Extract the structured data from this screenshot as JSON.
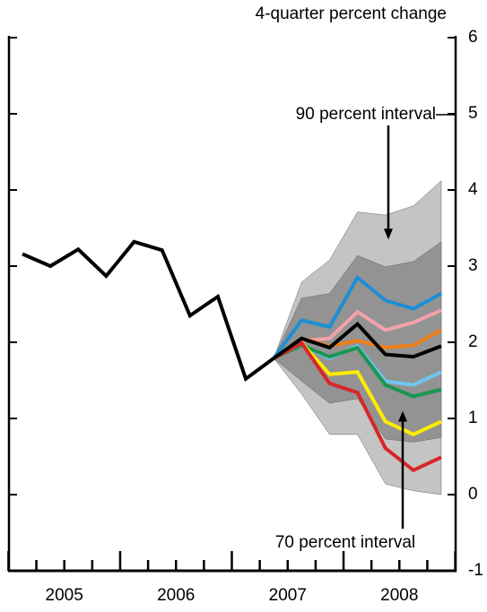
{
  "chart_data": {
    "type": "line",
    "y_axis_label": "4-quarter percent change",
    "categories": [
      "2005",
      null,
      null,
      null,
      "2006",
      null,
      null,
      null,
      "2007",
      null,
      null,
      null,
      "2008",
      null,
      null,
      null
    ],
    "ylim": [
      -1,
      6
    ],
    "yticks": [
      -1,
      0,
      1,
      2,
      3,
      4,
      5,
      6
    ],
    "bands": [
      {
        "color": "#c4c4c4",
        "upper": [
          null,
          null,
          null,
          null,
          null,
          null,
          null,
          null,
          null,
          1.79,
          2.79,
          3.08,
          3.71,
          3.67,
          3.79,
          4.12
        ],
        "lower": [
          null,
          null,
          null,
          null,
          null,
          null,
          null,
          null,
          null,
          1.79,
          1.32,
          0.79,
          0.79,
          0.14,
          0.05,
          0.0
        ]
      },
      {
        "color": "#939393",
        "upper": [
          null,
          null,
          null,
          null,
          null,
          null,
          null,
          null,
          null,
          1.79,
          2.58,
          2.64,
          3.14,
          2.99,
          3.06,
          3.32
        ],
        "lower": [
          null,
          null,
          null,
          null,
          null,
          null,
          null,
          null,
          null,
          1.79,
          1.49,
          1.2,
          1.26,
          0.73,
          0.69,
          0.75
        ]
      }
    ],
    "series": [
      {
        "color": "#1b8fd6",
        "values": [
          null,
          null,
          null,
          null,
          null,
          null,
          null,
          null,
          null,
          1.79,
          2.29,
          2.2,
          2.85,
          2.55,
          2.44,
          2.64
        ]
      },
      {
        "color": "#f3a1aa",
        "values": [
          null,
          null,
          null,
          null,
          null,
          null,
          null,
          null,
          null,
          1.79,
          2.02,
          2.05,
          2.4,
          2.16,
          2.26,
          2.42
        ]
      },
      {
        "color": "#ef7f1a",
        "values": [
          null,
          null,
          null,
          null,
          null,
          null,
          null,
          null,
          null,
          1.79,
          2.05,
          1.95,
          2.02,
          1.93,
          1.96,
          2.16
        ]
      },
      {
        "color": "#6fc6ef",
        "values": [
          null,
          null,
          null,
          null,
          null,
          null,
          null,
          null,
          null,
          1.79,
          1.96,
          1.79,
          1.95,
          1.49,
          1.44,
          1.61
        ]
      },
      {
        "color": "#1a9650",
        "values": [
          null,
          null,
          null,
          null,
          null,
          null,
          null,
          null,
          null,
          1.79,
          1.96,
          1.81,
          1.93,
          1.44,
          1.29,
          1.38
        ]
      },
      {
        "color": "#ffec00",
        "values": [
          null,
          null,
          null,
          null,
          null,
          null,
          null,
          null,
          null,
          1.79,
          1.99,
          1.58,
          1.61,
          0.96,
          0.79,
          0.96
        ]
      },
      {
        "color": "#d8262b",
        "values": [
          null,
          null,
          null,
          null,
          null,
          null,
          null,
          null,
          null,
          1.79,
          1.99,
          1.46,
          1.34,
          0.61,
          0.32,
          0.49
        ]
      },
      {
        "color": "#000000",
        "values": [
          3.16,
          3.0,
          3.22,
          2.87,
          3.32,
          3.21,
          2.35,
          2.6,
          1.52,
          1.79,
          2.05,
          1.93,
          2.24,
          1.84,
          1.81,
          1.95
        ]
      }
    ],
    "annotations": [
      {
        "text": "90 percent interval",
        "category": 13,
        "value": 3.35
      },
      {
        "text": "70 percent interval",
        "category": 13,
        "value": 1.1
      }
    ]
  }
}
